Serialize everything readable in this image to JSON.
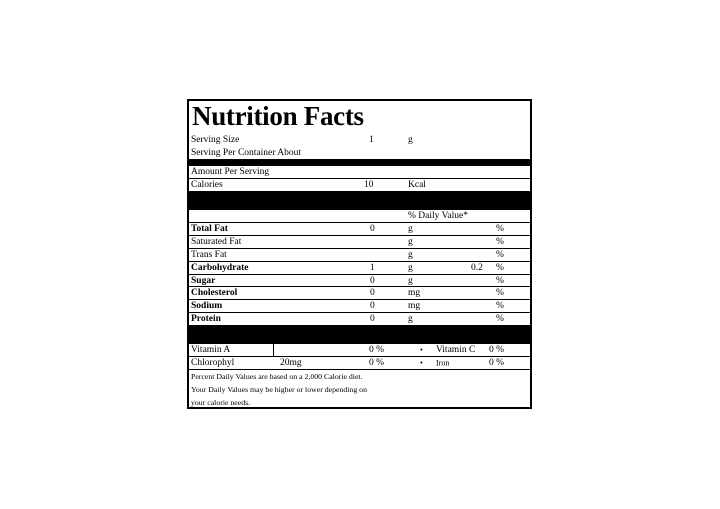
{
  "title": "Nutrition Facts",
  "serving": {
    "size_label": "Serving Size",
    "size_value": "1",
    "size_unit": "g",
    "per_container_label": "Serving Per Container About"
  },
  "amount_per_serving": "Amount Per Serving",
  "calories": {
    "label": "Calories",
    "value": "10",
    "unit": "Kcal"
  },
  "daily_value_header": "% Daily Value*",
  "nutrients": [
    {
      "label": "Total Fat",
      "bold": true,
      "value": "0",
      "unit": "g",
      "dv": "",
      "pct": "%"
    },
    {
      "label": "Saturated Fat",
      "bold": false,
      "value": "",
      "unit": "g",
      "dv": "",
      "pct": "%"
    },
    {
      "label": "Trans Fat",
      "bold": false,
      "value": "",
      "unit": "g",
      "dv": "",
      "pct": "%"
    },
    {
      "label": "Carbohydrate",
      "bold": true,
      "value": "1",
      "unit": "g",
      "dv": "0.2",
      "pct": "%"
    },
    {
      "label": "Sugar",
      "bold": true,
      "value": "0",
      "unit": "g",
      "dv": "",
      "pct": "%"
    },
    {
      "label": "Cholesterol",
      "bold": true,
      "value": "0",
      "unit": "mg",
      "dv": "",
      "pct": "%"
    },
    {
      "label": "Sodium",
      "bold": true,
      "value": "0",
      "unit": "mg",
      "dv": "",
      "pct": "%"
    },
    {
      "label": "Protein",
      "bold": true,
      "value": "0",
      "unit": "g",
      "dv": "",
      "pct": "%"
    }
  ],
  "vitamins": [
    {
      "label": "Vitamin A",
      "amount": "",
      "pct": "0 %",
      "bullet": "•",
      "label2": "Vitamin C",
      "pct2": "0 %"
    },
    {
      "label": "Chlorophyl",
      "amount": "20mg",
      "pct": "0 %",
      "bullet": "•",
      "label2": "Iron",
      "pct2": "0 %"
    }
  ],
  "footnotes": [
    "Percent Daily Values are based on a 2,000 Calorie diet.",
    "Your Daily Values may be higher or lower depending on",
    "your calorie needs."
  ]
}
